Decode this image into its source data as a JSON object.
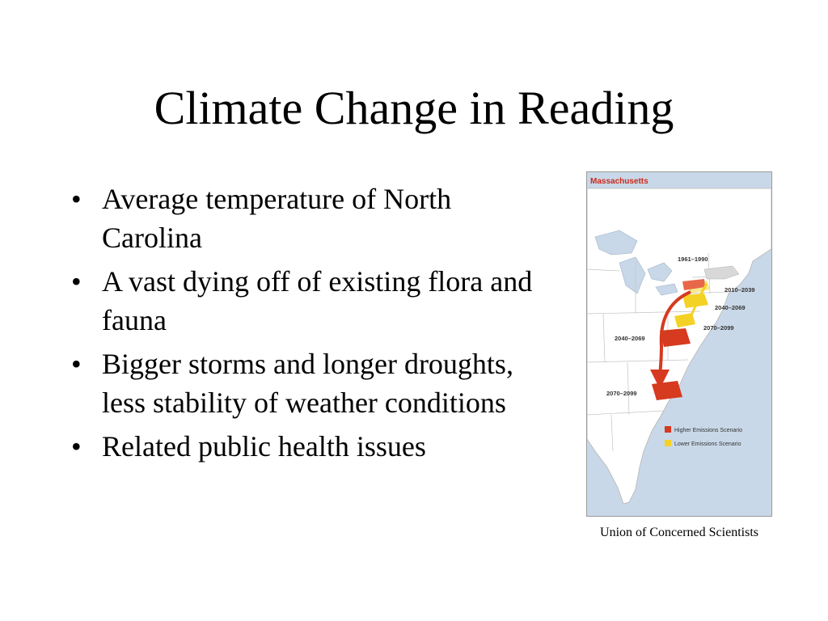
{
  "slide": {
    "title": "Climate Change in Reading",
    "bullets": [
      {
        "marker": "•",
        "text": "Average temperature of North Carolina"
      },
      {
        "marker": "•",
        "text": "A vast dying off of existing flora and fauna"
      },
      {
        "marker": "•",
        "text": "Bigger storms and longer droughts, less stability of weather conditions"
      },
      {
        "marker": "•",
        "text": "Related public health issues"
      }
    ],
    "caption": "Union of Concerned Scientists"
  },
  "map": {
    "heading": "Massachusetts",
    "labels": {
      "baseline": "1961–1990",
      "lower_2010": "2010–2039",
      "lower_2040": "2040–2069",
      "lower_2070": "2070–2099",
      "higher_2040": "2040–2069",
      "higher_2070": "2070–2099"
    },
    "legend": {
      "higher": "Higher Emissions Scenario",
      "lower": "Lower Emissions Scenario"
    },
    "colors": {
      "higher": "#d63a1f",
      "higher_light": "#e8674a",
      "lower": "#f3d225",
      "lower_light": "#f8e98a",
      "land": "#ffffff",
      "water": "#c9d8e8",
      "baseline": "#d8d8d8",
      "heading": "#cc2a1a"
    }
  }
}
